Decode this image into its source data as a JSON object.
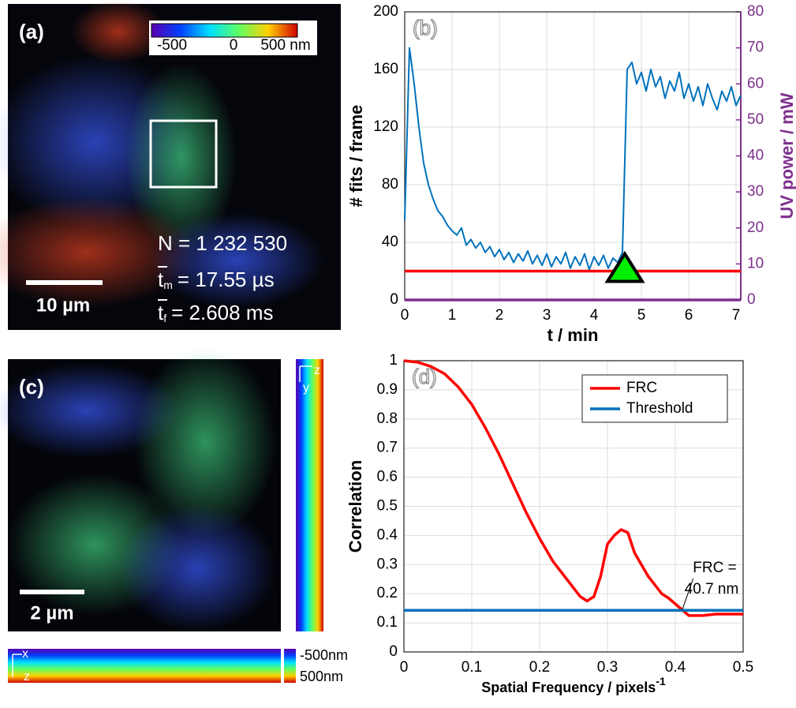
{
  "panels": [
    {
      "label": "(a)",
      "colorbar_ticks": [
        "-500",
        "0",
        "500 nm"
      ],
      "scale_bar": "10 µm",
      "stats": {
        "n": "N = 1 232 530",
        "t_m": {
          "symbol": "t",
          "subscript": "m",
          "text": "= 17.55 µs"
        },
        "t_f": {
          "symbol": "t",
          "subscript": "f",
          "text": "= 2.608 ms"
        }
      }
    },
    {
      "label": "(c)",
      "scale_bar": "2 µm",
      "side_axes": [
        "z",
        "y"
      ],
      "bottom_axes": [
        "x",
        "z"
      ],
      "colorbar_ticks": [
        "-500nm",
        "500nm"
      ]
    }
  ],
  "chart_data": [
    {
      "type": "line",
      "panel_label": "(b)",
      "xlabel": "t / min",
      "ylabel": "# fits / frame",
      "y2label": "UV power / mW",
      "xlim": [
        0,
        7.1
      ],
      "xticks": [
        0,
        1,
        2,
        3,
        4,
        5,
        6,
        7
      ],
      "ylim": [
        0,
        200
      ],
      "yticks": [
        0,
        40,
        80,
        120,
        160,
        200
      ],
      "y2lim": [
        0,
        80
      ],
      "y2ticks": [
        0,
        10,
        20,
        30,
        40,
        50,
        60,
        70,
        80
      ],
      "y2color": "#7e2f8e",
      "grid": true,
      "x": [
        0,
        0.1,
        0.2,
        0.3,
        0.4,
        0.5,
        0.6,
        0.7,
        0.8,
        0.9,
        1,
        1.1,
        1.2,
        1.3,
        1.4,
        1.5,
        1.6,
        1.7,
        1.8,
        1.9,
        2,
        2.1,
        2.2,
        2.3,
        2.4,
        2.5,
        2.6,
        2.7,
        2.8,
        2.9,
        3,
        3.1,
        3.2,
        3.3,
        3.4,
        3.5,
        3.6,
        3.7,
        3.8,
        3.9,
        4,
        4.1,
        4.2,
        4.3,
        4.4,
        4.5,
        4.6,
        4.7,
        4.8,
        4.9,
        5,
        5.1,
        5.2,
        5.3,
        5.4,
        5.5,
        5.6,
        5.7,
        5.8,
        5.9,
        6,
        6.1,
        6.2,
        6.3,
        6.4,
        6.5,
        6.6,
        6.7,
        6.8,
        6.9,
        7,
        7.1
      ],
      "series": [
        {
          "color": "#0072bd",
          "values": [
            55,
            175,
            150,
            120,
            95,
            80,
            70,
            62,
            58,
            52,
            48,
            45,
            50,
            38,
            42,
            36,
            40,
            33,
            37,
            30,
            35,
            28,
            33,
            26,
            32,
            27,
            34,
            25,
            31,
            24,
            32,
            23,
            30,
            25,
            33,
            22,
            30,
            24,
            32,
            21,
            30,
            24,
            31,
            22,
            29,
            26,
            33,
            160,
            165,
            150,
            158,
            145,
            160,
            148,
            155,
            140,
            152,
            145,
            158,
            140,
            150,
            138,
            148,
            135,
            150,
            140,
            132,
            145,
            138,
            148,
            135,
            142
          ]
        },
        {
          "color": "#ff0000",
          "x": [
            0,
            7.1
          ],
          "values": [
            20,
            20
          ]
        },
        {
          "color": "#7e2f8e",
          "axis": "y2",
          "x": [
            0,
            7.1
          ],
          "values": [
            0,
            0
          ]
        }
      ],
      "marker": {
        "x": 4.65,
        "y": 20,
        "color": "#00ee00"
      }
    },
    {
      "type": "line",
      "panel_label": "(d)",
      "xlabel": "Spatial Frequency / pixels",
      "xlabel_exponent": "-1",
      "ylabel": "Correlation",
      "xlim": [
        0,
        0.5
      ],
      "xticks": [
        0,
        0.1,
        0.2,
        0.3,
        0.4,
        0.5
      ],
      "ylim": [
        0,
        1
      ],
      "yticks": [
        0,
        0.1,
        0.2,
        0.3,
        0.4,
        0.5,
        0.6,
        0.7,
        0.8,
        0.9,
        1
      ],
      "grid": true,
      "legend": "upper right",
      "series": [
        {
          "name": "FRC",
          "color": "#ff0000",
          "x": [
            0,
            0.02,
            0.04,
            0.06,
            0.08,
            0.1,
            0.12,
            0.14,
            0.16,
            0.18,
            0.2,
            0.22,
            0.24,
            0.26,
            0.27,
            0.28,
            0.29,
            0.3,
            0.31,
            0.32,
            0.33,
            0.34,
            0.36,
            0.38,
            0.39,
            0.4,
            0.41,
            0.42,
            0.44,
            0.46,
            0.48,
            0.5
          ],
          "values": [
            1,
            0.995,
            0.98,
            0.955,
            0.91,
            0.85,
            0.77,
            0.68,
            0.58,
            0.48,
            0.39,
            0.31,
            0.25,
            0.19,
            0.175,
            0.19,
            0.26,
            0.37,
            0.4,
            0.42,
            0.41,
            0.34,
            0.26,
            0.2,
            0.185,
            0.165,
            0.145,
            0.125,
            0.125,
            0.13,
            0.13,
            0.13
          ]
        },
        {
          "name": "Threshold",
          "color": "#0072bd",
          "x": [
            0,
            0.5
          ],
          "values": [
            0.143,
            0.143
          ]
        }
      ],
      "annotation": [
        "FRC =",
        "40.7 nm"
      ]
    }
  ]
}
